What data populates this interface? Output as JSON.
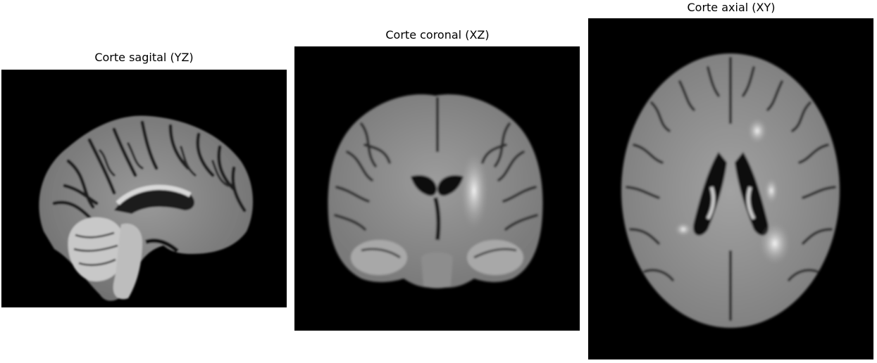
{
  "panels": {
    "sagittal": {
      "title": "Corte sagital (YZ)"
    },
    "coronal": {
      "title": "Corte coronal (XZ)"
    },
    "axial": {
      "title": "Corte axial (XY)"
    }
  }
}
